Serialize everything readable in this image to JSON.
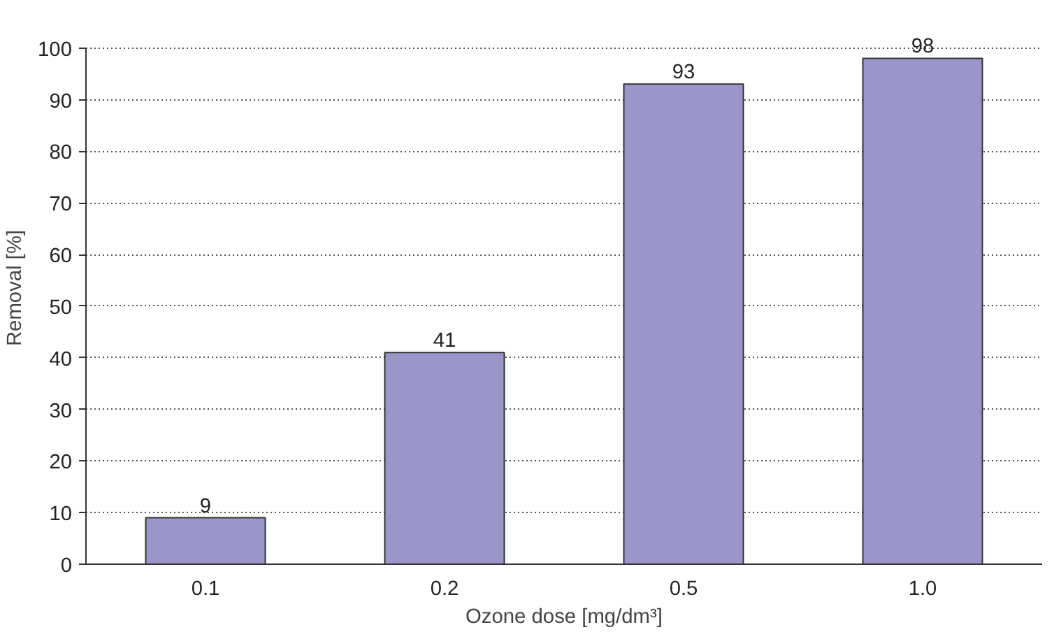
{
  "chart_data": {
    "type": "bar",
    "xlabel": "Ozone dose [mg/dm³]",
    "ylabel": "Removal [%]",
    "categories": [
      "0.1",
      "0.2",
      "0.5",
      "1.0"
    ],
    "values": [
      9,
      41,
      93,
      98
    ],
    "color": "#9b96c9",
    "ylim": [
      0,
      100
    ],
    "yticks": [
      0,
      10,
      20,
      30,
      40,
      50,
      60,
      70,
      80,
      90,
      100
    ],
    "grid": "y",
    "data_labels": true
  }
}
